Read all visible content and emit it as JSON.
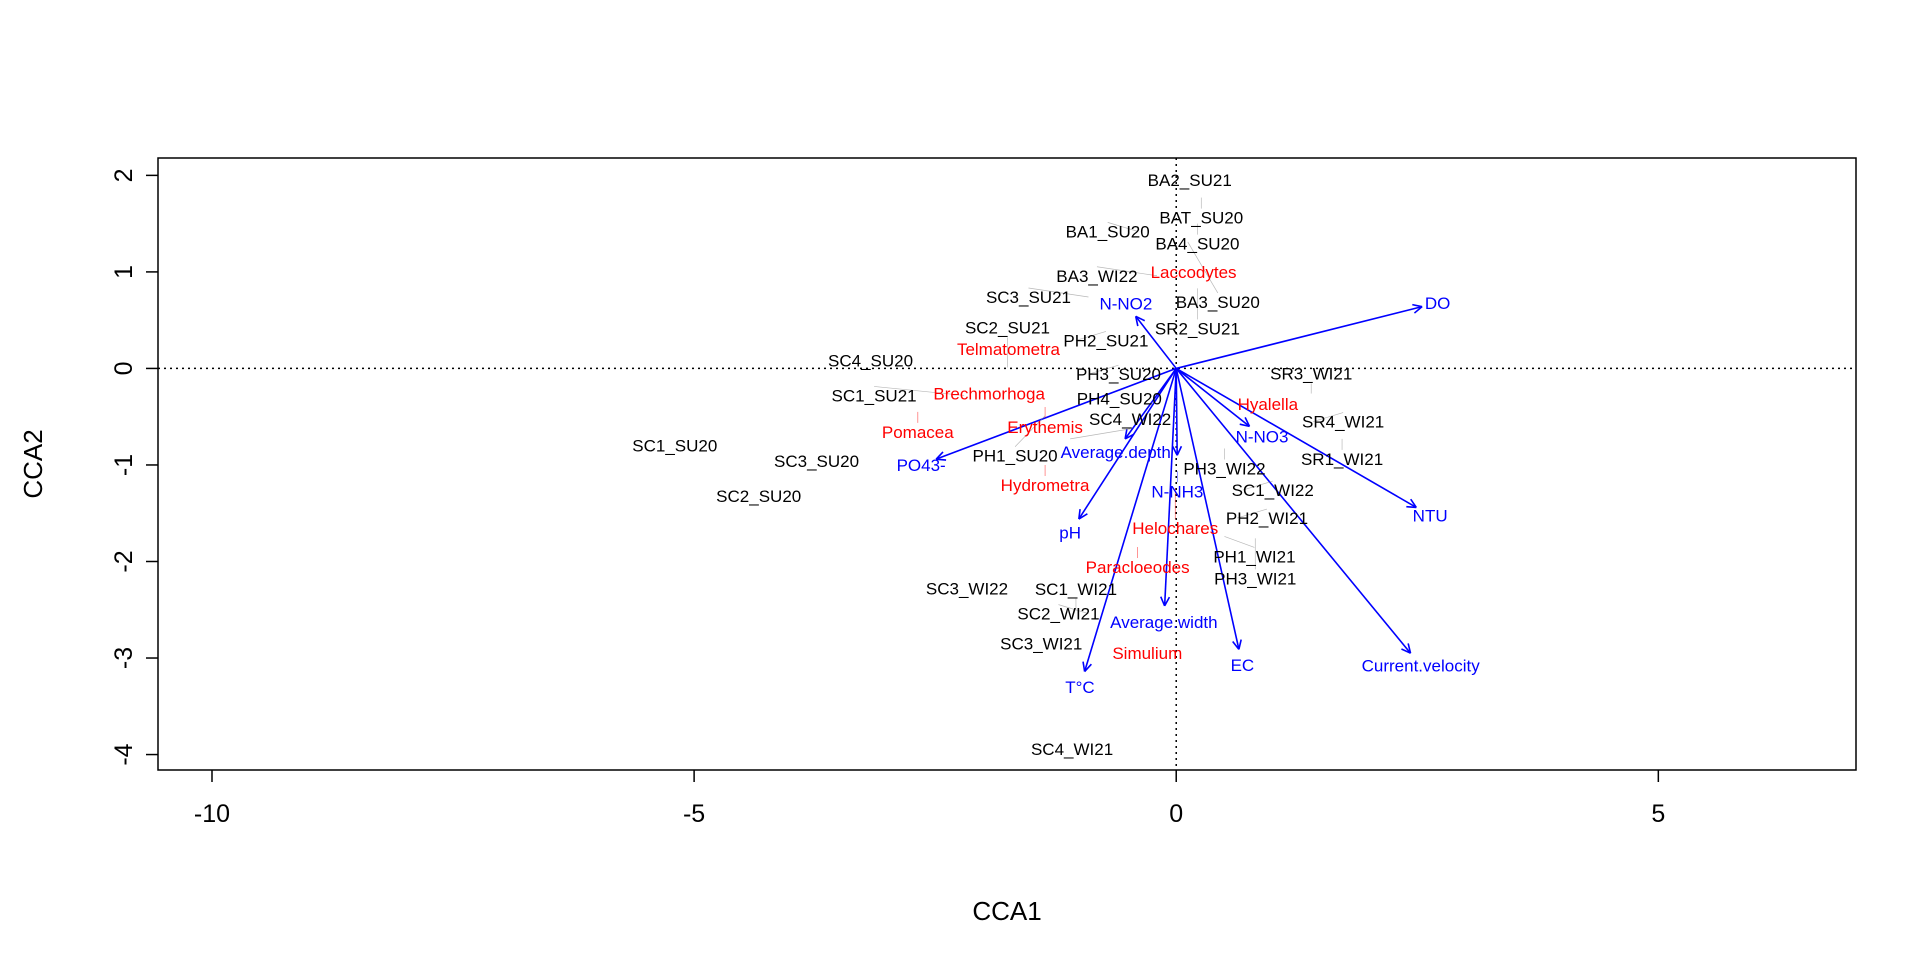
{
  "chart_data": {
    "type": "scatter",
    "title": "",
    "xlabel": "CCA1",
    "ylabel": "CCA2",
    "xlim": [
      -10.56,
      7.05
    ],
    "ylim": [
      -4.16,
      2.18
    ],
    "xticks": [
      -10,
      -5,
      0,
      5
    ],
    "yticks": [
      -4,
      -3,
      -2,
      -1,
      0,
      1,
      2
    ],
    "reference_lines": {
      "x": 0,
      "y": 0,
      "style": "dotted"
    },
    "colors": {
      "sites": "#000000",
      "species": "#ff0000",
      "environment": "#0000ff"
    },
    "sites": [
      {
        "label": "BA2_SU21",
        "x": 0.14,
        "y": 1.95
      },
      {
        "label": "BAT_SU20",
        "x": 0.26,
        "y": 1.77
      },
      {
        "label": "BA4_SU20",
        "x": 0.22,
        "y": 1.5
      },
      {
        "label": "BA1_SU20",
        "x": -0.4,
        "y": 1.42
      },
      {
        "label": "BA3_SU20",
        "x": 0.12,
        "y": 1.31
      },
      {
        "label": "BA3_WI22",
        "x": -0.2,
        "y": 0.96
      },
      {
        "label": "SR2_SU21",
        "x": 0.22,
        "y": 0.83
      },
      {
        "label": "SC3_SU21",
        "x": -0.91,
        "y": 0.74
      },
      {
        "label": "PH2_SU21",
        "x": -1.04,
        "y": 0.29
      },
      {
        "label": "SC4_SU20",
        "x": -3.17,
        "y": 0.08
      },
      {
        "label": "SC2_SU21",
        "x": -1.75,
        "y": 0.01
      },
      {
        "label": "PH3_SU20",
        "x": -0.91,
        "y": -0.06
      },
      {
        "label": "SC1_SU21",
        "x": -2.2,
        "y": -0.28
      },
      {
        "label": "PH4_SU20",
        "x": -0.59,
        "y": -0.31
      },
      {
        "label": "PH1_SU20",
        "x": -1.36,
        "y": -0.49
      },
      {
        "label": "SC4_WI22",
        "x": -1.1,
        "y": -0.73
      },
      {
        "label": "SC1_SU20",
        "x": -5.2,
        "y": -0.8
      },
      {
        "label": "SC3_SU20",
        "x": -3.73,
        "y": -0.96
      },
      {
        "label": "SC2_SU20",
        "x": -4.33,
        "y": -1.32
      },
      {
        "label": "SR3_WI21",
        "x": 1.4,
        "y": -0.26
      },
      {
        "label": "SR4_WI21",
        "x": 1.42,
        "y": -0.55
      },
      {
        "label": "SR1_WI21",
        "x": 1.72,
        "y": -0.73
      },
      {
        "label": "PH3_WI22",
        "x": 0.5,
        "y": -0.83
      },
      {
        "label": "SC1_WI22",
        "x": 0.69,
        "y": -1.26
      },
      {
        "label": "PH2_WI21",
        "x": 0.63,
        "y": -1.55
      },
      {
        "label": "PH1_WI21",
        "x": 0.5,
        "y": -1.74
      },
      {
        "label": "PH3_WI21",
        "x": 0.82,
        "y": -1.76
      },
      {
        "label": "SC3_WI22",
        "x": -2.17,
        "y": -2.28
      },
      {
        "label": "SC1_WI21",
        "x": -1.04,
        "y": -2.49
      },
      {
        "label": "SC2_WI21",
        "x": -0.91,
        "y": -2.54
      },
      {
        "label": "SC3_WI21",
        "x": -1.4,
        "y": -2.85
      },
      {
        "label": "SC4_WI21",
        "x": -1.08,
        "y": -3.94
      }
    ],
    "species": [
      {
        "label": "Laccodytes",
        "x": 0.18,
        "y": 1.0
      },
      {
        "label": "Telmatometra",
        "x": -1.74,
        "y": 0.2
      },
      {
        "label": "Brechmorhoga",
        "x": -1.94,
        "y": -0.26
      },
      {
        "label": "Erythemis",
        "x": -1.36,
        "y": -0.4
      },
      {
        "label": "Pomacea",
        "x": -2.68,
        "y": -0.45
      },
      {
        "label": "Hyalella",
        "x": 0.95,
        "y": -0.37
      },
      {
        "label": "Hydrometra",
        "x": -1.36,
        "y": -1.0
      },
      {
        "label": "Helochares",
        "x": -0.01,
        "y": -1.24
      },
      {
        "label": "Paracloeodes",
        "x": -0.4,
        "y": -1.85
      },
      {
        "label": "Simulium",
        "x": -0.3,
        "y": -2.95
      }
    ],
    "environment": [
      {
        "label": "DO",
        "x": 2.55,
        "y": 0.64
      },
      {
        "label": "NTU",
        "x": 2.49,
        "y": -1.44
      },
      {
        "label": "Current.velocity",
        "x": 2.43,
        "y": -2.95
      },
      {
        "label": "EC",
        "x": 0.65,
        "y": -2.91
      },
      {
        "label": "Average.width",
        "x": -0.12,
        "y": -2.46
      },
      {
        "label": "T°C",
        "x": -0.95,
        "y": -3.14
      },
      {
        "label": "pH",
        "x": -1.01,
        "y": -1.56
      },
      {
        "label": "PO43-",
        "x": -2.49,
        "y": -0.94
      },
      {
        "label": "Average.depth",
        "x": -0.53,
        "y": -0.73
      },
      {
        "label": "N-NH3",
        "x": 0.01,
        "y": -0.9
      },
      {
        "label": "N-NO3",
        "x": 0.76,
        "y": -0.6
      },
      {
        "label": "N-NO2",
        "x": -0.42,
        "y": 0.54
      }
    ]
  }
}
